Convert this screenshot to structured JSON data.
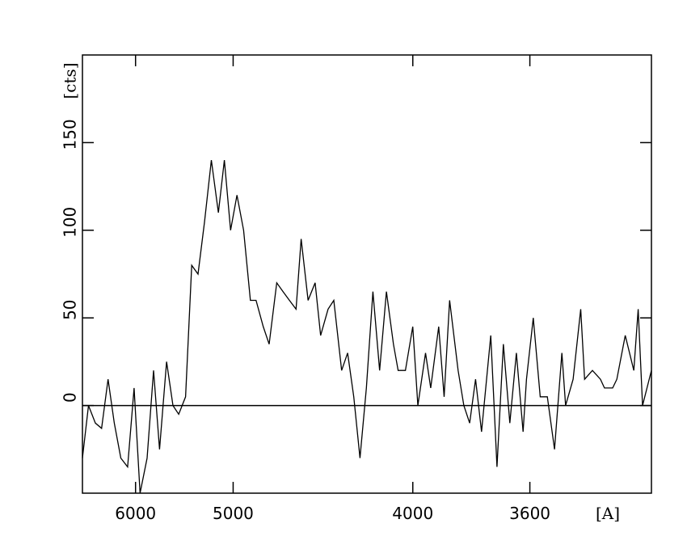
{
  "chart_data": {
    "type": "line",
    "xlabel": "[A]",
    "ylabel": "[cts]",
    "xscale": "inverse-square",
    "xlim": [
      6880,
      3290
    ],
    "xticks": [
      6000,
      5000,
      4000,
      3600
    ],
    "ylim": [
      -50,
      200
    ],
    "yticks": [
      0,
      50,
      100,
      150
    ],
    "hlines": [
      0
    ],
    "x": [
      6880,
      6760,
      6630,
      6520,
      6410,
      6310,
      6210,
      6110,
      6020,
      5940,
      5850,
      5770,
      5700,
      5620,
      5550,
      5490,
      5420,
      5360,
      5300,
      5240,
      5180,
      5120,
      5070,
      5020,
      4970,
      4920,
      4870,
      4830,
      4780,
      4740,
      4690,
      4650,
      4610,
      4570,
      4540,
      4500,
      4460,
      4430,
      4390,
      4360,
      4320,
      4290,
      4260,
      4230,
      4200,
      4170,
      4140,
      4110,
      4080,
      4060,
      4030,
      4000,
      3980,
      3950,
      3930,
      3900,
      3880,
      3860,
      3830,
      3810,
      3790,
      3770,
      3750,
      3720,
      3700,
      3680,
      3660,
      3640,
      3620,
      3610,
      3590,
      3570,
      3550,
      3530,
      3510,
      3500,
      3480,
      3460,
      3450,
      3430,
      3410,
      3400,
      3380,
      3370,
      3350,
      3330,
      3320,
      3310,
      3290
    ],
    "series": [
      {
        "color": "#000000",
        "values": [
          -30,
          0,
          -10,
          -13,
          15,
          -10,
          -30,
          -35,
          10,
          -50,
          -30,
          20,
          -25,
          25,
          0,
          -5,
          5,
          80,
          75,
          105,
          140,
          110,
          140,
          100,
          120,
          100,
          60,
          60,
          45,
          35,
          70,
          65,
          60,
          55,
          95,
          60,
          70,
          40,
          55,
          60,
          20,
          30,
          5,
          -30,
          10,
          65,
          20,
          65,
          35,
          20,
          20,
          45,
          0,
          30,
          10,
          45,
          5,
          60,
          20,
          0,
          -10,
          15,
          -15,
          40,
          -35,
          35,
          -10,
          30,
          -15,
          15,
          50,
          5,
          5,
          -25,
          30,
          0,
          15,
          55,
          15,
          20,
          15,
          10,
          10,
          15,
          40,
          20,
          55,
          0,
          20
        ]
      }
    ]
  }
}
